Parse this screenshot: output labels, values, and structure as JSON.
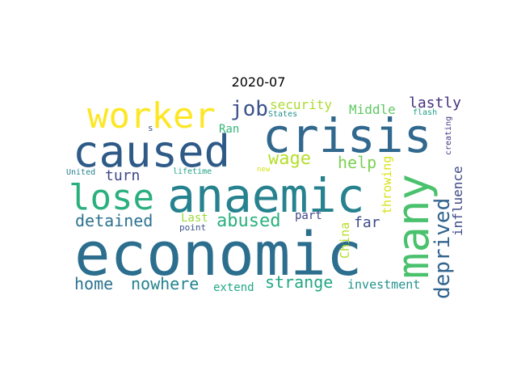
{
  "title": "2020-07",
  "words": [
    {
      "text": "economic",
      "color": "#2c6e8e"
    },
    {
      "text": "anaemic",
      "color": "#26828e"
    },
    {
      "text": "crisis",
      "color": "#31688e"
    },
    {
      "text": "caused",
      "color": "#2e5a87"
    },
    {
      "text": "many",
      "color": "#4ac16d"
    },
    {
      "text": "worker",
      "color": "#fde725"
    },
    {
      "text": "lose",
      "color": "#2ab07f"
    },
    {
      "text": "deprived",
      "color": "#32658e"
    },
    {
      "text": "job",
      "color": "#3b528b"
    },
    {
      "text": "wage",
      "color": "#b5de2b"
    },
    {
      "text": "abused",
      "color": "#2ab07f"
    },
    {
      "text": "strange",
      "color": "#22a884"
    },
    {
      "text": "detained",
      "color": "#2c728e"
    },
    {
      "text": "home",
      "color": "#2c728e"
    },
    {
      "text": "nowhere",
      "color": "#25838e"
    },
    {
      "text": "help",
      "color": "#7ad151"
    },
    {
      "text": "turn",
      "color": "#3f4788"
    },
    {
      "text": "lastly",
      "color": "#46327e"
    },
    {
      "text": "far",
      "color": "#3e4a89"
    },
    {
      "text": "influence",
      "color": "#3e4a89"
    },
    {
      "text": "security",
      "color": "#addc30"
    },
    {
      "text": "Middle",
      "color": "#5ec962"
    },
    {
      "text": "investment",
      "color": "#21918c"
    },
    {
      "text": "throwing",
      "color": "#d8e219"
    },
    {
      "text": "China",
      "color": "#b8de29"
    },
    {
      "text": "extend",
      "color": "#22a884"
    },
    {
      "text": "Ran",
      "color": "#35b779"
    },
    {
      "text": "Last",
      "color": "#9bd93c"
    },
    {
      "text": "part",
      "color": "#404688"
    },
    {
      "text": "point",
      "color": "#3b528b"
    },
    {
      "text": "lifetime",
      "color": "#20a386"
    },
    {
      "text": "United",
      "color": "#27808e"
    },
    {
      "text": "States",
      "color": "#21918c"
    },
    {
      "text": "new",
      "color": "#d5e21a"
    },
    {
      "text": "flash",
      "color": "#1fa088"
    },
    {
      "text": "creating",
      "color": "#443a83"
    },
    {
      "text": "s",
      "color": "#3b528b"
    }
  ]
}
